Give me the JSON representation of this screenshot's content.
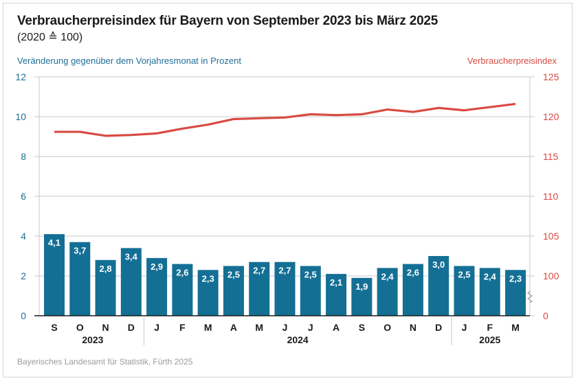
{
  "header": {
    "title": "Verbraucherpreisindex für Bayern von September 2023 bis März 2025",
    "subtitle": "(2020 ≙ 100)"
  },
  "source": "Bayerisches Landesamt für Statistik, Fürth 2025",
  "colors": {
    "bar": "#146f95",
    "line": "#d94a43",
    "left_axis": "#1f6e96",
    "right_axis": "#d94a43",
    "grid": "#c8c8c8"
  },
  "chart_data": {
    "type": "bar+line",
    "title": "Verbraucherpreisindex für Bayern von September 2023 bis März 2025",
    "subtitle": "(2020 ≙ 100)",
    "categories": [
      "S",
      "O",
      "N",
      "D",
      "J",
      "F",
      "M",
      "A",
      "M",
      "J",
      "J",
      "A",
      "S",
      "O",
      "N",
      "D",
      "J",
      "F",
      "M"
    ],
    "year_groups": [
      {
        "label": "2023",
        "start": 0,
        "end": 3
      },
      {
        "label": "2024",
        "start": 4,
        "end": 15
      },
      {
        "label": "2025",
        "start": 16,
        "end": 18
      }
    ],
    "series": [
      {
        "name": "Veränderung gegenüber dem Vorjahresmonat in Prozent",
        "type": "bar",
        "axis": "left",
        "values": [
          4.1,
          3.7,
          2.8,
          3.4,
          2.9,
          2.6,
          2.3,
          2.5,
          2.7,
          2.7,
          2.5,
          2.1,
          1.9,
          2.4,
          2.6,
          3.0,
          2.5,
          2.4,
          2.3
        ],
        "labels": [
          "4,1",
          "3,7",
          "2,8",
          "3,4",
          "2,9",
          "2,6",
          "2,3",
          "2,5",
          "2,7",
          "2,7",
          "2,5",
          "2,1",
          "1,9",
          "2,4",
          "2,6",
          "3,0",
          "2,5",
          "2,4",
          "2,3"
        ]
      },
      {
        "name": "Verbraucherpreisindex",
        "type": "line",
        "axis": "right",
        "values": [
          118.1,
          118.1,
          117.6,
          117.7,
          117.9,
          118.5,
          119.0,
          119.7,
          119.8,
          119.9,
          120.3,
          120.2,
          120.3,
          120.9,
          120.6,
          121.1,
          120.8,
          121.2,
          121.6
        ]
      }
    ],
    "left_axis": {
      "label": "Veränderung gegenüber dem Vorjahresmonat in Prozent",
      "ylim": [
        0,
        12
      ],
      "ticks": [
        0,
        2,
        4,
        6,
        8,
        10,
        12
      ]
    },
    "right_axis": {
      "label": "Verbraucherpreisindex",
      "ylim": [
        100,
        125
      ],
      "ticks": [
        "0",
        "100",
        "105",
        "110",
        "115",
        "120",
        "125"
      ],
      "axis_break": "between 0 and 100"
    },
    "grid": true,
    "legend": "axis titles (top-left and top-right)"
  }
}
